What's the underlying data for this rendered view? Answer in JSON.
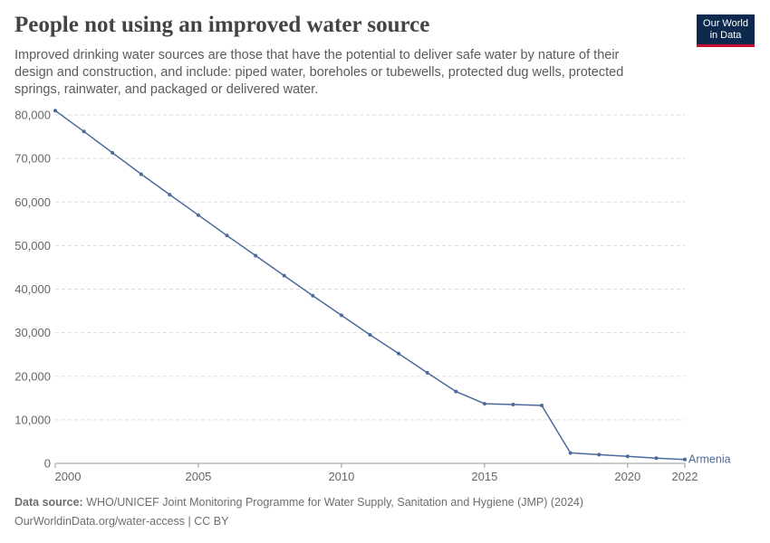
{
  "header": {
    "title": "People not using an improved water source",
    "subtitle": "Improved drinking water sources are those that have the potential to deliver safe water by nature of their design and construction, and include: piped water, boreholes or tubewells, protected dug wells, protected springs, rainwater, and packaged or delivered water."
  },
  "logo": {
    "line1": "Our World",
    "line2": "in Data"
  },
  "footer": {
    "source_label": "Data source:",
    "source_text": "WHO/UNICEF Joint Monitoring Programme for Water Supply, Sanitation and Hygiene (JMP) (2024)",
    "url_text": "OurWorldinData.org/water-access | CC BY"
  },
  "colors": {
    "series": "#4c6a9c",
    "grid": "#dddddd",
    "axis": "#666666",
    "text": "#444444"
  },
  "chart_data": {
    "type": "line",
    "title": "People not using an improved water source",
    "xlim": [
      2000,
      2022
    ],
    "ylim": [
      0,
      80000
    ],
    "x_ticks": [
      2000,
      2005,
      2010,
      2015,
      2020,
      2022
    ],
    "x_tick_labels": [
      "2000",
      "2005",
      "2010",
      "2015",
      "2020",
      "2022"
    ],
    "y_ticks": [
      0,
      10000,
      20000,
      30000,
      40000,
      50000,
      60000,
      70000,
      80000
    ],
    "y_tick_labels": [
      "0",
      "10,000",
      "20,000",
      "30,000",
      "40,000",
      "50,000",
      "60,000",
      "70,000",
      "80,000"
    ],
    "grid": "horizontal dashed",
    "series": [
      {
        "name": "Armenia",
        "x": [
          2000,
          2001,
          2002,
          2003,
          2004,
          2005,
          2006,
          2007,
          2008,
          2009,
          2010,
          2011,
          2012,
          2013,
          2014,
          2015,
          2016,
          2017,
          2018,
          2019,
          2020,
          2021,
          2022
        ],
        "y": [
          81000,
          76200,
          71300,
          66400,
          61700,
          57000,
          52300,
          47700,
          43100,
          38500,
          34000,
          29500,
          25200,
          20800,
          16500,
          13700,
          13500,
          13300,
          2400,
          2000,
          1600,
          1200,
          900
        ]
      }
    ]
  }
}
